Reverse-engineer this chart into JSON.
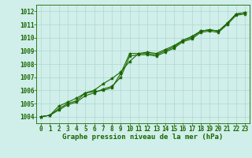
{
  "hours": [
    0,
    1,
    2,
    3,
    4,
    5,
    6,
    7,
    8,
    9,
    10,
    11,
    12,
    13,
    14,
    15,
    16,
    17,
    18,
    19,
    20,
    21,
    22,
    23
  ],
  "line1": [
    1004.0,
    1004.1,
    1004.6,
    1005.0,
    1005.2,
    1005.8,
    1005.9,
    1006.0,
    1006.2,
    1007.3,
    1008.8,
    1008.8,
    1008.8,
    1008.7,
    1009.0,
    1009.3,
    1009.8,
    1010.0,
    1010.5,
    1010.6,
    1010.5,
    1011.1,
    1011.8,
    1011.9
  ],
  "line2": [
    1004.0,
    1004.1,
    1004.8,
    1005.1,
    1005.4,
    1005.8,
    1006.0,
    1006.5,
    1006.9,
    1007.4,
    1008.2,
    1008.8,
    1008.9,
    1008.8,
    1009.1,
    1009.4,
    1009.8,
    1010.1,
    1010.5,
    1010.6,
    1010.5,
    1011.1,
    1011.8,
    1011.9
  ],
  "line3": [
    1004.0,
    1004.1,
    1004.5,
    1004.9,
    1005.1,
    1005.6,
    1005.8,
    1006.1,
    1006.3,
    1007.0,
    1008.6,
    1008.7,
    1008.7,
    1008.6,
    1008.9,
    1009.2,
    1009.7,
    1009.9,
    1010.4,
    1010.5,
    1010.4,
    1011.0,
    1011.7,
    1011.8
  ],
  "line_color": "#1a6600",
  "bg_color": "#d0eeea",
  "grid_color": "#b0d8d0",
  "label_color": "#1a6600",
  "xlabel": "Graphe pression niveau de la mer (hPa)",
  "ylim_min": 1003.5,
  "ylim_max": 1012.5,
  "yticks": [
    1004,
    1005,
    1006,
    1007,
    1008,
    1009,
    1010,
    1011,
    1012
  ],
  "marker": "*",
  "marker_size": 3,
  "linewidth": 0.8,
  "tick_fontsize": 5.5,
  "xlabel_fontsize": 6.5
}
